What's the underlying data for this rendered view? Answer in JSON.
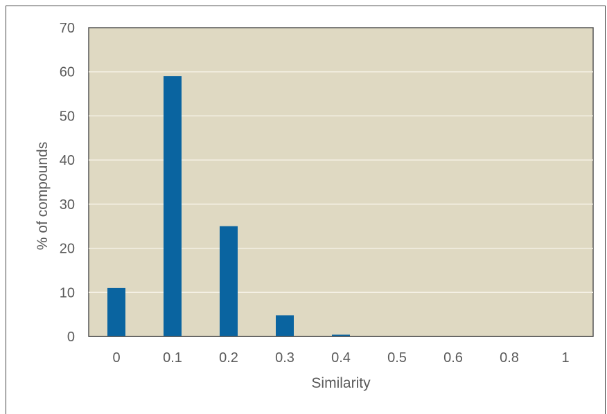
{
  "chart_data": {
    "type": "bar",
    "title": "",
    "xlabel": "Similarity",
    "ylabel": "% of compounds",
    "categories": [
      "0",
      "0.1",
      "0.2",
      "0.3",
      "0.4",
      "0.5",
      "0.6",
      "0.8",
      "1"
    ],
    "values": [
      11,
      59,
      25,
      4.8,
      0.4,
      0,
      0,
      0,
      0
    ],
    "ylim": [
      0,
      70
    ],
    "yticks": [
      "0",
      "10",
      "20",
      "30",
      "40",
      "50",
      "60",
      "70"
    ],
    "grid": true,
    "legend": "none",
    "colors": {
      "bar": "#0a64a0",
      "plot_background": "#dfd9c2",
      "gridline": "#f4f0e4",
      "axis": "#555555",
      "text": "#5a5a5a"
    }
  }
}
